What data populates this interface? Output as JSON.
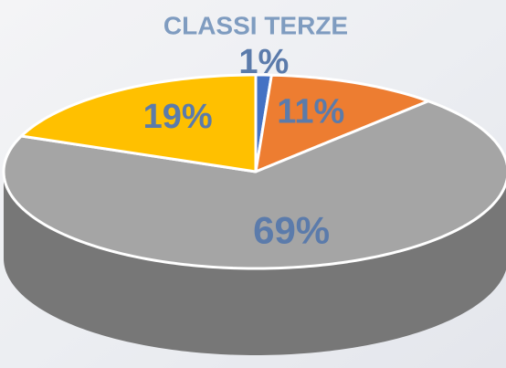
{
  "chart_data": {
    "type": "pie",
    "title": "CLASSI TERZE",
    "categories": [
      "Blu",
      "Arancione",
      "Grigio",
      "Giallo"
    ],
    "values": [
      1,
      11,
      69,
      19
    ],
    "value_labels": [
      "1%",
      "11%",
      "69%",
      "19%"
    ],
    "colors": [
      "#4472c4",
      "#ed7d31",
      "#a5a5a5",
      "#ffc000"
    ]
  }
}
